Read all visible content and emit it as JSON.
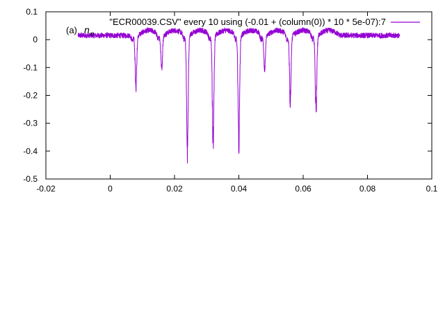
{
  "chart_data": {
    "type": "line",
    "title": "",
    "xlabel": "",
    "ylabel": "",
    "xlim": [
      -0.02,
      0.1
    ],
    "ylim": [
      -0.5,
      0.1
    ],
    "x_ticks": [
      -0.02,
      0,
      0.02,
      0.04,
      0.06,
      0.08,
      0.1
    ],
    "x_tick_labels": [
      "-0.02",
      "0",
      "0.02",
      "0.04",
      "0.06",
      "0.08",
      "0.1"
    ],
    "y_ticks": [
      0.1,
      0,
      -0.1,
      -0.2,
      -0.3,
      -0.4,
      -0.5
    ],
    "y_tick_labels": [
      "0.1",
      "0",
      "-0.1",
      "-0.2",
      "-0.3",
      "-0.4",
      "-0.5"
    ],
    "grid": false,
    "legend_position": "top-right",
    "series": [
      {
        "name": "\"ECR00039.CSV\" every 10 using (-0.01 + (column(0)) * 10 * 5e-07):7",
        "color": "#9400d3",
        "baseline": 0.015,
        "x_range": [
          -0.01,
          0.09
        ],
        "dips": [
          {
            "x": 0.008,
            "min": -0.2
          },
          {
            "x": 0.016,
            "min": -0.12
          },
          {
            "x": 0.024,
            "min": -0.45
          },
          {
            "x": 0.032,
            "min": -0.43
          },
          {
            "x": 0.04,
            "min": -0.42
          },
          {
            "x": 0.048,
            "min": -0.13
          },
          {
            "x": 0.056,
            "min": -0.25
          },
          {
            "x": 0.064,
            "min": -0.29
          }
        ]
      }
    ],
    "annotation": {
      "label": "(a)",
      "symbol": "n",
      "subscript": "e"
    }
  }
}
